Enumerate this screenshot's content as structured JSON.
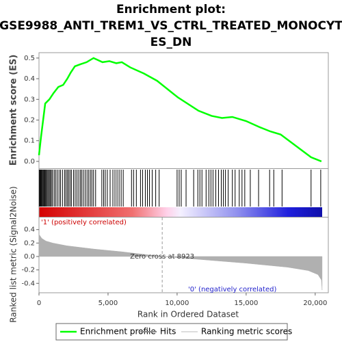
{
  "chart_data": [
    {
      "type": "line",
      "title": [
        "Enrichment plot:",
        "GSE9988_ANTI_TREM1_VS_CTRL_TREATED_MONOCYT",
        "ES_DN"
      ],
      "ylabel": "Enrichment score (ES)",
      "xlim": [
        0,
        20950
      ],
      "ylim": [
        -0.03,
        0.526
      ],
      "yticks": [
        {
          "value": 0,
          "label": "0.0"
        },
        0.1,
        0.2,
        0.3,
        0.4,
        0.5
      ],
      "series": [
        {
          "name": "Enrichment profile",
          "color": "#00ff00",
          "x": [
            0,
            150,
            300,
            450,
            750,
            1050,
            1400,
            1750,
            2050,
            2300,
            2600,
            3000,
            3450,
            3950,
            4600,
            5100,
            5600,
            6000,
            6600,
            7600,
            8550,
            10050,
            11550,
            12500,
            13250,
            14000,
            15000,
            16000,
            16750,
            17500,
            18500,
            19700,
            20450
          ],
          "values": [
            0.03,
            0.12,
            0.2,
            0.28,
            0.3,
            0.33,
            0.36,
            0.37,
            0.4,
            0.43,
            0.46,
            0.47,
            0.48,
            0.5,
            0.48,
            0.485,
            0.475,
            0.48,
            0.455,
            0.425,
            0.39,
            0.31,
            0.245,
            0.22,
            0.21,
            0.215,
            0.195,
            0.165,
            0.145,
            0.13,
            0.08,
            0.02,
            0.0
          ]
        }
      ]
    },
    {
      "type": "hits",
      "name": "Hits",
      "color": "#000000",
      "xlim": [
        0,
        20950
      ],
      "values": [
        20,
        60,
        110,
        150,
        200,
        260,
        310,
        360,
        420,
        480,
        540,
        600,
        680,
        750,
        820,
        900,
        980,
        1100,
        1200,
        1320,
        1450,
        1560,
        1700,
        1850,
        1950,
        2050,
        2150,
        2250,
        2350,
        2500,
        2620,
        2750,
        2880,
        3000,
        3100,
        3220,
        3350,
        3480,
        3600,
        3720,
        3830,
        3950,
        4100,
        4550,
        4680,
        4800,
        4950,
        5150,
        5350,
        5500,
        5650,
        5800,
        5950,
        6100,
        6700,
        6850,
        7050,
        7350,
        7500,
        7700,
        7850,
        8000,
        8200,
        8450,
        8700,
        10000,
        10150,
        10300,
        10650,
        11200,
        11500,
        11650,
        11800,
        12100,
        12300,
        12450,
        12600,
        12800,
        13000,
        13200,
        13350,
        13500,
        13700,
        14000,
        14200,
        14500,
        14700,
        14900,
        15300,
        15900,
        16700,
        17000,
        17600,
        19700,
        20400
      ]
    },
    {
      "type": "area",
      "name": "Ranking metric scores",
      "color": "#b0b0b0",
      "ylabel": "Ranked list metric (Signal2Noise)",
      "xlabel": "Rank in Ordered Dataset",
      "xlim": [
        0,
        20950
      ],
      "ylim": [
        -0.54,
        0.58
      ],
      "xticks": [
        0,
        {
          "value": 5000,
          "label": "5,000"
        },
        {
          "value": 10000,
          "label": "10,000"
        },
        {
          "value": 15000,
          "label": "15,000"
        },
        {
          "value": 20000,
          "label": "20,000"
        }
      ],
      "yticks": [
        0.4,
        0.2,
        {
          "value": 0,
          "label": "0.0"
        },
        -0.2,
        -0.4
      ],
      "x": [
        0,
        200,
        500,
        1000,
        2000,
        4000,
        6000,
        8923,
        12000,
        15000,
        18000,
        19500,
        20200,
        20450,
        20500
      ],
      "values": [
        0.33,
        0.27,
        0.23,
        0.2,
        0.16,
        0.11,
        0.07,
        0,
        -0.05,
        -0.1,
        -0.16,
        -0.21,
        -0.27,
        -0.35,
        -0.5
      ],
      "zero_cross": {
        "value": 8923,
        "label": "Zero cross at 8923"
      },
      "positive_label": "'1' (positively correlated)",
      "negative_label": "'0' (negatively correlated)"
    }
  ]
}
